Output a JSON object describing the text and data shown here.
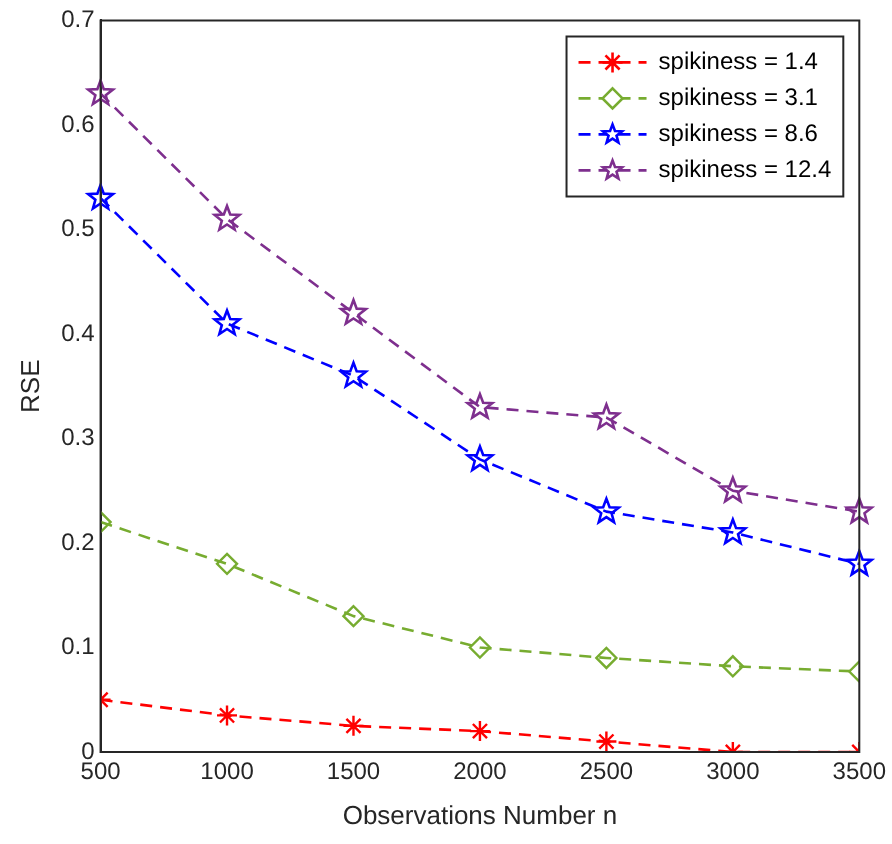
{
  "chart_data": {
    "type": "line",
    "xlabel": "Observations Number n",
    "ylabel": "RSE",
    "x": [
      500,
      1000,
      1500,
      2000,
      2500,
      3000,
      3500
    ],
    "xlim": [
      500,
      3500
    ],
    "xticks": [
      500,
      1000,
      1500,
      2000,
      2500,
      3000,
      3500
    ],
    "ylim": [
      0,
      0.7
    ],
    "yticks": [
      0,
      0.1,
      0.2,
      0.3,
      0.4,
      0.5,
      0.6,
      0.7
    ],
    "grid": false,
    "legend": "top right",
    "line_style": "dashed",
    "series": [
      {
        "name": "spikiness = 1.4",
        "color": "#ff0000",
        "marker": "cross",
        "values": [
          0.05,
          0.035,
          0.025,
          0.02,
          0.01,
          0,
          0
        ]
      },
      {
        "name": "spikiness = 3.1",
        "color": "#77ac30",
        "marker": "diamond",
        "values": [
          0.22,
          0.18,
          0.13,
          0.1,
          0.09,
          0.082,
          0.077
        ]
      },
      {
        "name": "spikiness = 8.6",
        "color": "#0000ff",
        "marker": "star",
        "values": [
          0.53,
          0.41,
          0.36,
          0.28,
          0.23,
          0.21,
          0.18
        ]
      },
      {
        "name": "spikiness = 12.4",
        "color": "#7e2f8e",
        "marker": "star",
        "values": [
          0.63,
          0.51,
          0.42,
          0.33,
          0.32,
          0.25,
          0.23
        ]
      }
    ]
  }
}
